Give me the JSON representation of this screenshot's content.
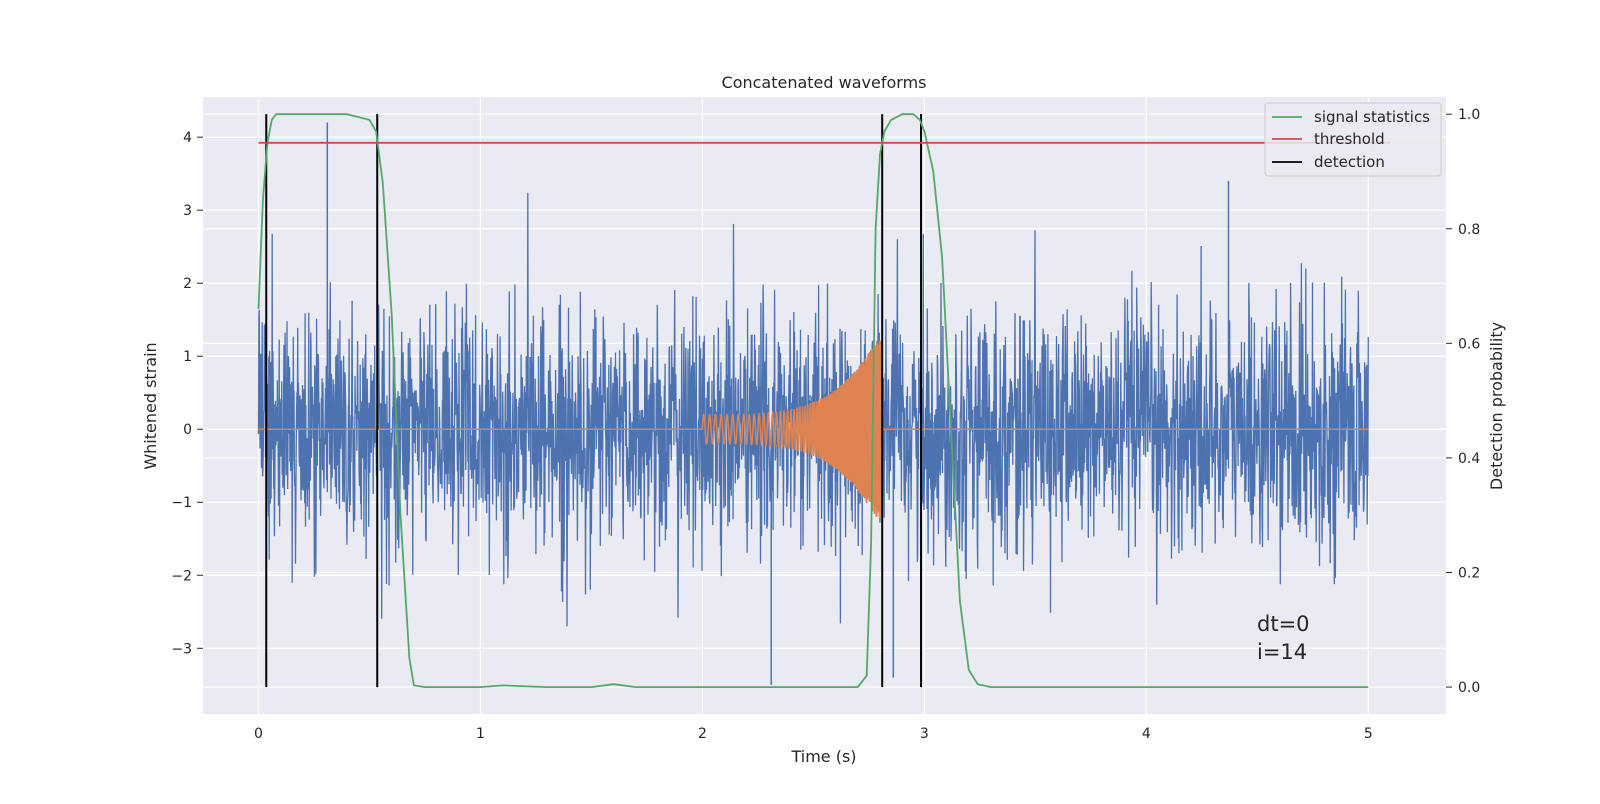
{
  "chart_data": {
    "type": "line",
    "title": "Concatenated waveforms",
    "xlabel": "Time (s)",
    "ylabel": "Whitened strain",
    "y2label": "Detection probability",
    "xlim": [
      -0.25,
      5.35
    ],
    "ylim": [
      -3.9,
      4.55
    ],
    "y2lim": [
      -0.047,
      1.03
    ],
    "xticks": [
      0,
      1,
      2,
      3,
      4,
      5
    ],
    "xtick_labels": [
      "0",
      "1",
      "2",
      "3",
      "4",
      "5"
    ],
    "yticks": [
      -3,
      -2,
      -1,
      0,
      1,
      2,
      3,
      4
    ],
    "ytick_labels": [
      "−3",
      "−2",
      "−1",
      "0",
      "1",
      "2",
      "3",
      "4"
    ],
    "y2ticks": [
      0.0,
      0.2,
      0.4,
      0.6,
      0.8,
      1.0
    ],
    "y2tick_labels": [
      "0.0",
      "0.2",
      "0.4",
      "0.6",
      "0.8",
      "1.0"
    ],
    "grid": true,
    "legend_position": "top-right",
    "legend": [
      {
        "label": "signal statistics",
        "color": "#55a868"
      },
      {
        "label": "threshold",
        "color": "#c44e52"
      },
      {
        "label": "detection",
        "color": "#000000"
      }
    ],
    "annotations": [
      "dt=0",
      "i=14"
    ],
    "series": [
      {
        "kind": "noise",
        "color": "#4c72b0",
        "x_range": [
          0,
          5
        ],
        "std": 0.8,
        "max": 4.2,
        "min": -3.5
      },
      {
        "kind": "injected-chirp",
        "color": "#dd8452",
        "x_range": [
          2,
          2.81
        ],
        "amplitude_start": 0.2,
        "amplitude_end": 1.35
      },
      {
        "name": "signal statistics",
        "color": "#55a868",
        "axis": "right",
        "x": [
          0.0,
          0.02,
          0.04,
          0.06,
          0.08,
          0.12,
          0.2,
          0.4,
          0.5,
          0.53,
          0.56,
          0.6,
          0.64,
          0.68,
          0.7,
          0.75,
          1.0,
          1.1,
          1.3,
          1.5,
          1.6,
          1.7,
          2.0,
          2.5,
          2.7,
          2.74,
          2.76,
          2.78,
          2.8,
          2.82,
          2.85,
          2.9,
          2.95,
          2.98,
          3.0,
          3.04,
          3.08,
          3.12,
          3.16,
          3.2,
          3.24,
          3.3,
          4.0,
          5.0
        ],
        "y": [
          0.66,
          0.85,
          0.95,
          0.99,
          1.0,
          1.0,
          1.0,
          1.0,
          0.99,
          0.97,
          0.88,
          0.65,
          0.3,
          0.05,
          0.003,
          0.0,
          0.0,
          0.003,
          0.0,
          0.0,
          0.005,
          0.0,
          0.0,
          0.0,
          0.0,
          0.02,
          0.25,
          0.8,
          0.93,
          0.97,
          0.99,
          1.0,
          1.0,
          0.99,
          0.97,
          0.9,
          0.75,
          0.45,
          0.15,
          0.03,
          0.005,
          0.0,
          0.0,
          0.0
        ]
      },
      {
        "name": "threshold",
        "color": "#c44e52",
        "axis": "right",
        "x": [
          0.0,
          5.1
        ],
        "y": [
          0.95,
          0.95
        ]
      }
    ],
    "detections": [
      0.035,
      0.535,
      2.81,
      2.985
    ]
  }
}
